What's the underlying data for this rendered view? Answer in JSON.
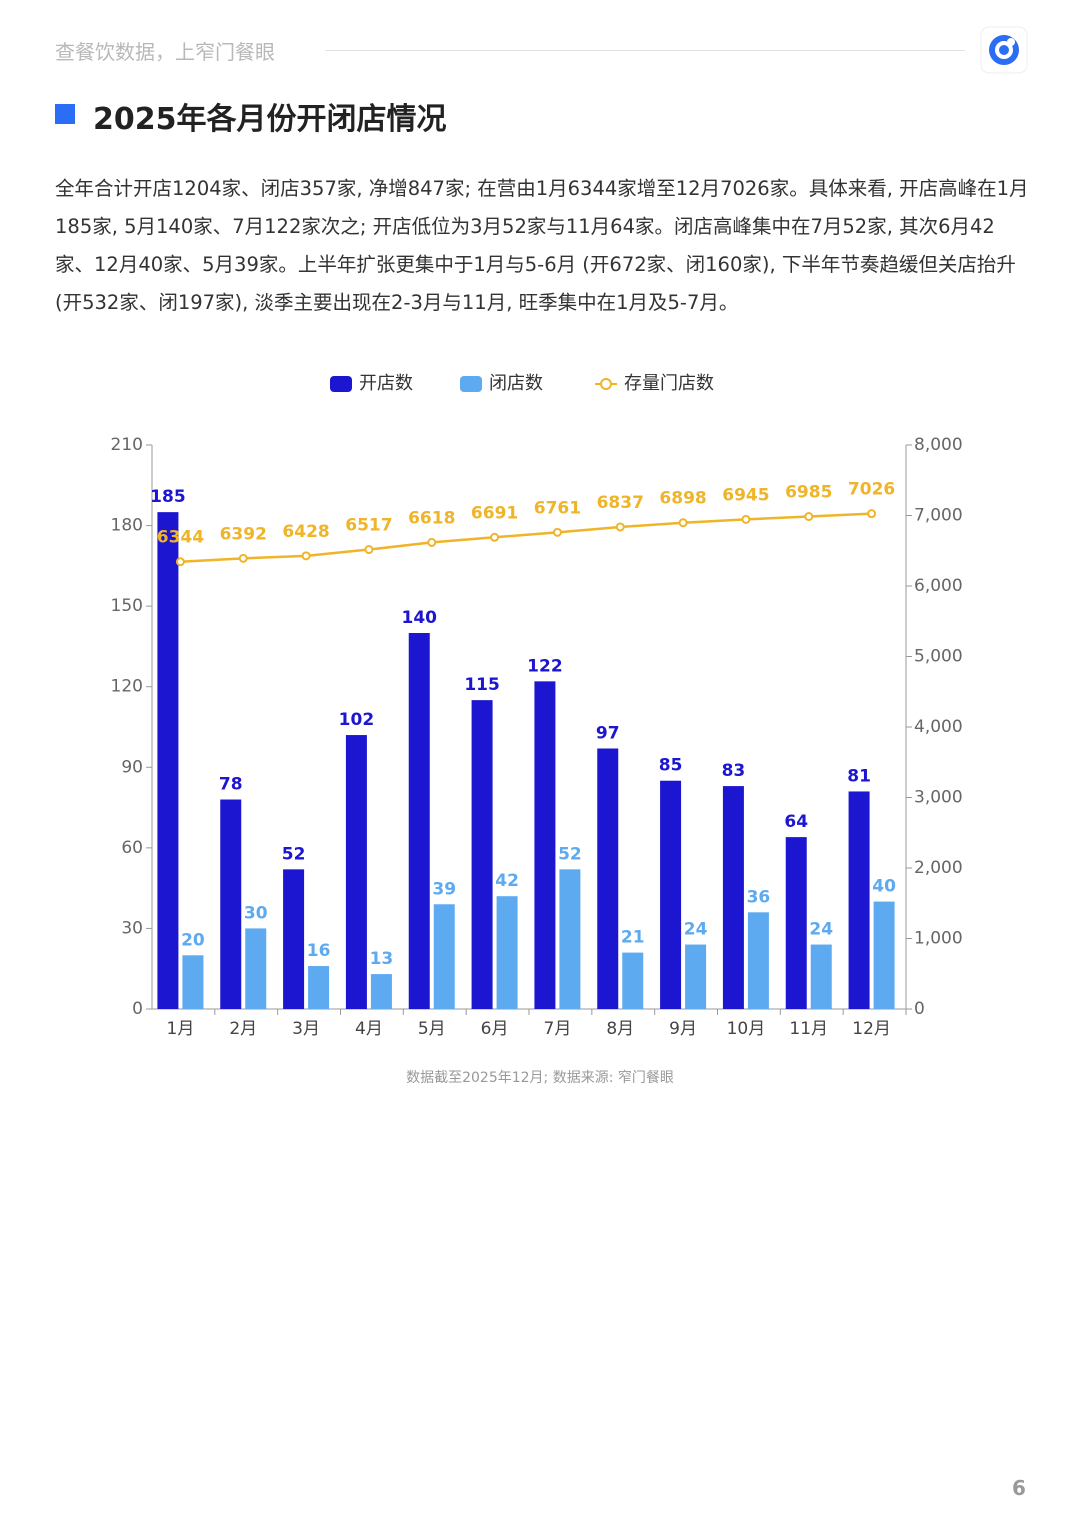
{
  "header": {
    "slogan": "查餐饮数据，上窄门餐眼",
    "page_number": "6"
  },
  "section_title": "2025年各月份开闭店情况",
  "paragraph": "全年合计开店1204家、闭店357家, 净增847家; 在营由1月6344家增至12月7026家。具体来看, 开店高峰在1月185家, 5月140家、7月122家次之; 开店低位为3月52家与11月64家。闭店高峰集中在7月52家, 其次6月42家、12月40家、5月39家。上半年扩张更集中于1月与5-6月 (开672家、闭160家), 下半年节奏趋缓但关店抬升 (开532家、闭197家), 淡季主要出现在2-3月与11月, 旺季集中在1月及5-7月。",
  "chart_data": {
    "type": "bar",
    "categories": [
      "1月",
      "2月",
      "3月",
      "4月",
      "5月",
      "6月",
      "7月",
      "8月",
      "9月",
      "10月",
      "11月",
      "12月"
    ],
    "series": [
      {
        "name": "开店数",
        "color": "#1d16d0",
        "values": [
          185,
          78,
          52,
          102,
          140,
          115,
          122,
          97,
          85,
          83,
          64,
          81
        ]
      },
      {
        "name": "闭店数",
        "color": "#5eaaf0",
        "values": [
          20,
          30,
          16,
          13,
          39,
          42,
          52,
          21,
          24,
          36,
          24,
          40
        ]
      },
      {
        "name": "存量门店数",
        "type": "line",
        "axis": "y2",
        "color": "#f0b428",
        "values": [
          6344,
          6392,
          6428,
          6517,
          6618,
          6691,
          6761,
          6837,
          6898,
          6945,
          6985,
          7026
        ]
      }
    ],
    "ylim": [
      0,
      210
    ],
    "yticks": [
      0,
      30,
      60,
      90,
      120,
      150,
      180,
      210
    ],
    "y2lim": [
      0,
      8000
    ],
    "y2ticks": [
      0,
      {
        "value": 1000,
        "label": "1,000"
      },
      {
        "value": 2000,
        "label": "2,000"
      },
      {
        "value": 3000,
        "label": "3,000"
      },
      {
        "value": 4000,
        "label": "4,000"
      },
      {
        "value": 5000,
        "label": "5,000"
      },
      {
        "value": 6000,
        "label": "6,000"
      },
      {
        "value": 7000,
        "label": "7,000"
      },
      {
        "value": 8000,
        "label": "8,000"
      }
    ],
    "legend": "top",
    "note": "数据截至2025年12月; 数据来源: 窄门餐眼"
  }
}
